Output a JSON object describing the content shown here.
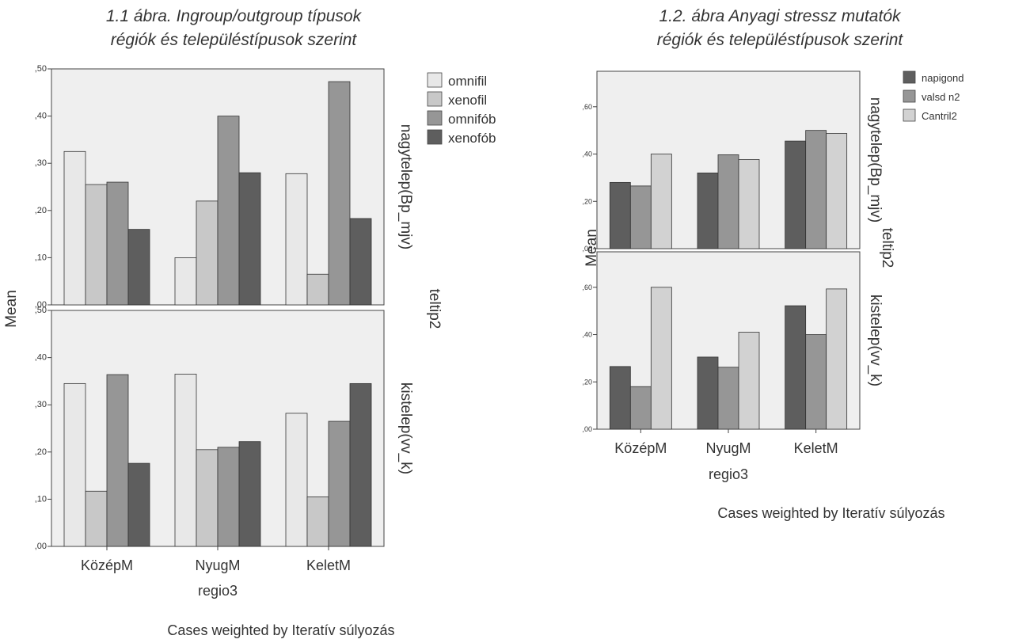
{
  "chart_data": [
    {
      "type": "bar",
      "title": "1.1 ábra. Ingroup/outgroup típusok\nrégiók és településtípusok szerint",
      "xlabel": "regio3",
      "ylabel": "Mean",
      "panel_label": "teltip2",
      "note": "Cases weighted by Iteratív súlyozás",
      "categories": [
        "KözépM",
        "NyugM",
        "KeletM"
      ],
      "yticks": [
        ",00",
        ",10",
        ",20",
        ",30",
        ",40",
        ",50"
      ],
      "ylim": [
        0,
        0.5
      ],
      "legend": [
        {
          "name": "omnifil",
          "color": "#e8e8e8"
        },
        {
          "name": "xenofil",
          "color": "#c8c8c8"
        },
        {
          "name": "omnifób",
          "color": "#969696"
        },
        {
          "name": "xenofób",
          "color": "#5e5e5e"
        }
      ],
      "panels": [
        {
          "label": "nagytelep(Bp_mjv)",
          "series": [
            {
              "name": "omnifil",
              "values": [
                0.325,
                0.1,
                0.278
              ]
            },
            {
              "name": "xenofil",
              "values": [
                0.255,
                0.22,
                0.065
              ]
            },
            {
              "name": "omnifób",
              "values": [
                0.26,
                0.4,
                0.473
              ]
            },
            {
              "name": "xenofób",
              "values": [
                0.16,
                0.28,
                0.183
              ]
            }
          ]
        },
        {
          "label": "kistelep(vv_k)",
          "series": [
            {
              "name": "omnifil",
              "values": [
                0.345,
                0.365,
                0.282
              ]
            },
            {
              "name": "xenofil",
              "values": [
                0.117,
                0.205,
                0.105
              ]
            },
            {
              "name": "omnifób",
              "values": [
                0.364,
                0.21,
                0.265
              ]
            },
            {
              "name": "xenofób",
              "values": [
                0.176,
                0.222,
                0.345
              ]
            }
          ]
        }
      ]
    },
    {
      "type": "bar",
      "title": "1.2. ábra Anyagi stressz mutatók\nrégiók és településtípusok szerint",
      "xlabel": "regio3",
      "ylabel": "Mean",
      "panel_label": "teltip2",
      "note": "Cases weighted by Iteratív súlyozás",
      "categories": [
        "KözépM",
        "NyugM",
        "KeletM"
      ],
      "yticks": [
        ",00",
        ",20",
        ",40",
        ",60"
      ],
      "ylim": [
        0,
        0.75
      ],
      "legend": [
        {
          "name": "napigond",
          "color": "#5e5e5e"
        },
        {
          "name": "valsd n2",
          "color": "#969696"
        },
        {
          "name": "Cantril2",
          "color": "#d2d2d2"
        }
      ],
      "panels": [
        {
          "label": "nagytelep(Bp_mjv)",
          "series": [
            {
              "name": "napigond",
              "values": [
                0.28,
                0.32,
                0.455
              ]
            },
            {
              "name": "valsd n2",
              "values": [
                0.265,
                0.397,
                0.5
              ]
            },
            {
              "name": "Cantril2",
              "values": [
                0.4,
                0.377,
                0.487
              ]
            }
          ]
        },
        {
          "label": "kistelep(vv_k)",
          "series": [
            {
              "name": "napigond",
              "values": [
                0.265,
                0.305,
                0.522
              ]
            },
            {
              "name": "valsd n2",
              "values": [
                0.18,
                0.262,
                0.4
              ]
            },
            {
              "name": "Cantril2",
              "values": [
                0.6,
                0.41,
                0.593
              ]
            }
          ]
        }
      ]
    }
  ]
}
